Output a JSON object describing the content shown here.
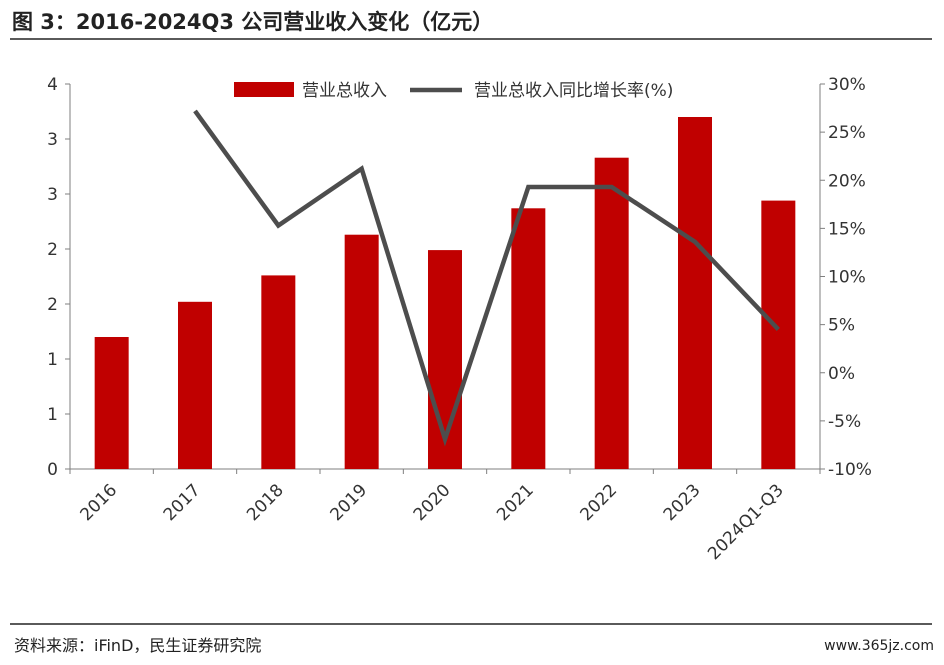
{
  "title": "图 3：2016-2024Q3 公司营业收入变化（亿元）",
  "source": "资料来源：iFinD，民生证券研究院",
  "watermark": "www.365jz.com",
  "colors": {
    "bar": "#c00000",
    "line": "#4d4d4d",
    "axis": "#7f7f7f"
  },
  "chart_data": {
    "type": "bar",
    "categories": [
      "2016",
      "2017",
      "2018",
      "2019",
      "2020",
      "2021",
      "2022",
      "2023",
      "2024Q1-Q3"
    ],
    "series": [
      {
        "name": "营业总收入",
        "type": "bar",
        "axis": "left",
        "values": [
          1.2,
          1.52,
          1.76,
          2.13,
          1.99,
          2.37,
          2.83,
          3.2,
          2.44
        ]
      },
      {
        "name": "营业总收入同比增长率(%)",
        "type": "line",
        "axis": "right",
        "values": [
          null,
          27.2,
          15.3,
          21.2,
          -6.9,
          19.3,
          19.3,
          13.6,
          4.5
        ]
      }
    ],
    "left_axis": {
      "ylim": [
        0,
        3.5
      ],
      "tick_labels": [
        "0",
        "1",
        "1",
        "2",
        "2",
        "3",
        "3",
        "4"
      ]
    },
    "right_axis": {
      "ylim": [
        -10,
        30
      ],
      "tick_labels": [
        "-10%",
        "-5%",
        "0%",
        "5%",
        "10%",
        "15%",
        "20%",
        "25%",
        "30%"
      ]
    },
    "legend": {
      "placement": "top-center",
      "entries": [
        "营业总收入",
        "营业总收入同比增长率(%)"
      ]
    },
    "grid": false
  }
}
